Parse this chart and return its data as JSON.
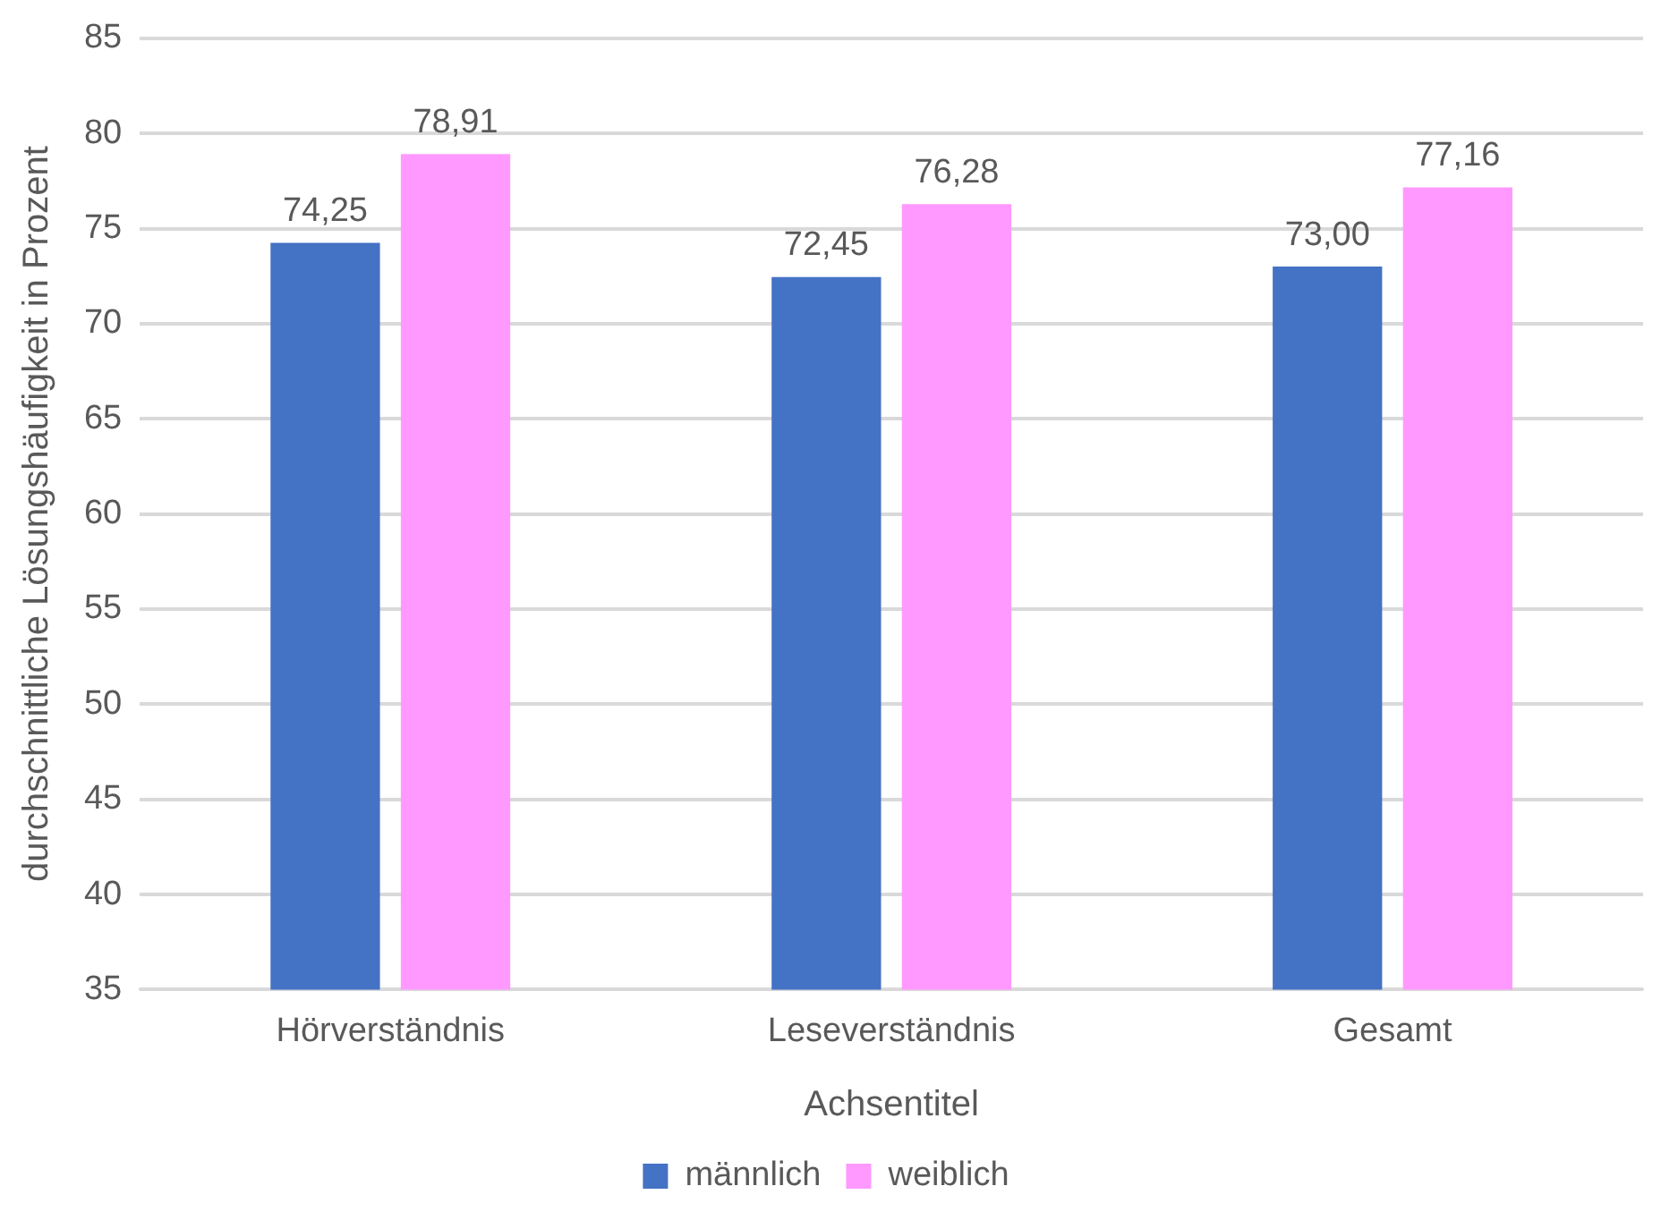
{
  "chart_data": {
    "type": "bar",
    "xlabel": "Achsentitel",
    "ylabel": "durchschnittliche Lösungshäufigkeit in Prozent",
    "categories": [
      "Hörverständnis",
      "Leseverständnis",
      "Gesamt"
    ],
    "series": [
      {
        "name": "männlich",
        "color": "#4472c4",
        "values": [
          74.25,
          72.45,
          73.0
        ],
        "value_labels": [
          "74,25",
          "72,45",
          "73,00"
        ]
      },
      {
        "name": "weiblich",
        "color": "#ff99ff",
        "values": [
          78.91,
          76.28,
          77.16
        ],
        "value_labels": [
          "78,91",
          "76,28",
          "77,16"
        ]
      }
    ],
    "ylim": [
      35,
      85
    ],
    "yticks": [
      35,
      40,
      45,
      50,
      55,
      60,
      65,
      70,
      75,
      80,
      85
    ],
    "grid": "y",
    "legend": "bottom"
  }
}
